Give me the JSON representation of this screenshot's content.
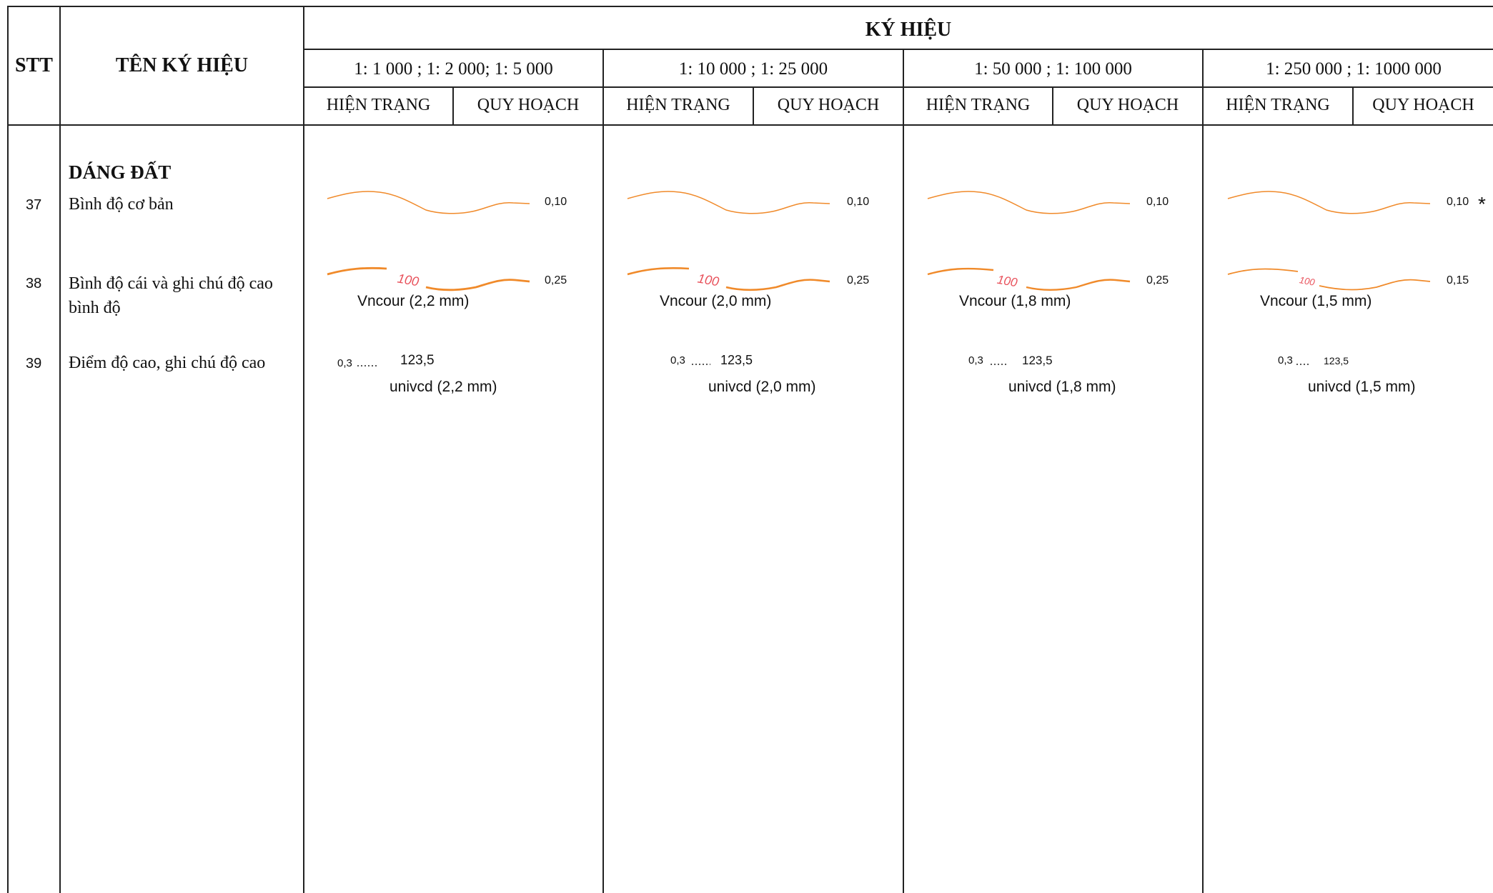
{
  "header": {
    "stt": "STT",
    "name": "TÊN KÝ HIỆU",
    "symbol": "KÝ HIỆU",
    "scales": [
      "1: 1 000 ; 1: 2 000; 1: 5 000",
      "1: 10 000 ; 1: 25 000",
      "1: 50 000 ; 1: 100 000",
      "1: 250 000 ; 1: 1000 000"
    ],
    "existing": "HIỆN TRẠNG",
    "planning": "QUY HOẠCH"
  },
  "section_title": "DÁNG ĐẤT",
  "rows": [
    {
      "stt": "37",
      "name": "Bình độ cơ bản"
    },
    {
      "stt": "38",
      "name_line1": "Bình độ cái và ghi chú độ cao",
      "name_line2": "bình độ"
    },
    {
      "stt": "39",
      "name": "Điểm độ cao, ghi chú độ cao"
    }
  ],
  "symbols": [
    {
      "basic_width": "0,10",
      "index_width": "0,25",
      "contour_label": "100",
      "contour_font": "Vncour (2,2 mm)",
      "point_size": "0,3",
      "elevation": "123,5",
      "point_font": "univcd (2,2 mm)"
    },
    {
      "basic_width": "0,10",
      "index_width": "0,25",
      "contour_label": "100",
      "contour_font": "Vncour (2,0 mm)",
      "point_size": "0,3",
      "elevation": "123,5",
      "point_font": "univcd (2,0 mm)"
    },
    {
      "basic_width": "0,10",
      "index_width": "0,25",
      "contour_label": "100",
      "contour_font": "Vncour (1,8 mm)",
      "point_size": "0,3",
      "elevation": "123,5",
      "point_font": "univcd (1,8 mm)"
    },
    {
      "basic_width": "0,10",
      "index_width": "0,15",
      "contour_label": "100",
      "contour_font": "Vncour (1,5 mm)",
      "point_size": "0,3",
      "elevation": "123,5",
      "point_font": "univcd (1,5 mm)"
    }
  ],
  "asterisk": "*",
  "colors": {
    "contour": "#f08a2a",
    "contour_label": "#e8505a",
    "border": "#222222"
  }
}
